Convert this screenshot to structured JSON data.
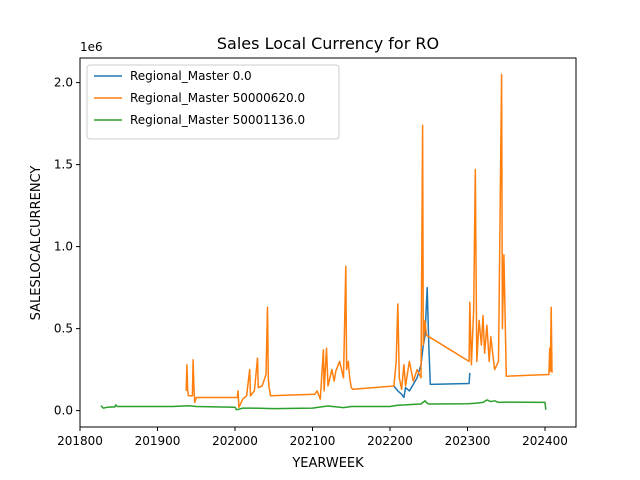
{
  "chart_data": {
    "type": "line",
    "title": "Sales Local Currency for RO",
    "xlabel": "YEARWEEK",
    "ylabel": "SALESLOCALCURRENCY",
    "y_offset_label": "1e6",
    "xlim": [
      201800,
      202440
    ],
    "ylim": [
      -0.1,
      2.15
    ],
    "y_scale_note": "y values in millions (1e6)",
    "grid": false,
    "legend_position": "upper-left",
    "x_ticks": [
      201800,
      201900,
      202000,
      202100,
      202200,
      202300,
      202400
    ],
    "x_tick_labels": [
      "201800",
      "201900",
      "202000",
      "202100",
      "202200",
      "202300",
      "202400"
    ],
    "y_ticks": [
      0.0,
      0.5,
      1.0,
      1.5,
      2.0
    ],
    "y_tick_labels": [
      "0.0",
      "0.5",
      "1.0",
      "1.5",
      "2.0"
    ],
    "series": [
      {
        "name": "Regional_Master 0.0",
        "color": "#1f77b4",
        "points": [
          [
            202205,
            0.15
          ],
          [
            202210,
            0.12
          ],
          [
            202215,
            0.1
          ],
          [
            202218,
            0.08
          ],
          [
            202220,
            0.14
          ],
          [
            202225,
            0.12
          ],
          [
            202230,
            0.16
          ],
          [
            202235,
            0.2
          ],
          [
            202240,
            0.28
          ],
          [
            202243,
            0.4
          ],
          [
            202245,
            0.45
          ],
          [
            202248,
            0.75
          ],
          [
            202250,
            0.4
          ],
          [
            202252,
            0.16
          ],
          [
            202302,
            0.165
          ],
          [
            202303,
            0.23
          ]
        ]
      },
      {
        "name": "Regional_Master 50000620.0",
        "color": "#ff7f0e",
        "points": [
          [
            201937,
            0.12
          ],
          [
            201938,
            0.28
          ],
          [
            201939,
            0.12
          ],
          [
            201940,
            0.09
          ],
          [
            201945,
            0.09
          ],
          [
            201946,
            0.31
          ],
          [
            201947,
            0.15
          ],
          [
            201948,
            0.05
          ],
          [
            201950,
            0.08
          ],
          [
            202003,
            0.08
          ],
          [
            202004,
            0.12
          ],
          [
            202005,
            0.02
          ],
          [
            202010,
            0.07
          ],
          [
            202015,
            0.09
          ],
          [
            202019,
            0.25
          ],
          [
            202020,
            0.09
          ],
          [
            202025,
            0.12
          ],
          [
            202029,
            0.32
          ],
          [
            202030,
            0.14
          ],
          [
            202035,
            0.15
          ],
          [
            202040,
            0.22
          ],
          [
            202042,
            0.63
          ],
          [
            202043,
            0.2
          ],
          [
            202044,
            0.14
          ],
          [
            202046,
            0.09
          ],
          [
            202103,
            0.1
          ],
          [
            202106,
            0.12
          ],
          [
            202110,
            0.07
          ],
          [
            202114,
            0.37
          ],
          [
            202115,
            0.12
          ],
          [
            202118,
            0.38
          ],
          [
            202120,
            0.15
          ],
          [
            202125,
            0.25
          ],
          [
            202128,
            0.18
          ],
          [
            202130,
            0.24
          ],
          [
            202135,
            0.3
          ],
          [
            202140,
            0.2
          ],
          [
            202143,
            0.88
          ],
          [
            202144,
            0.25
          ],
          [
            202146,
            0.3
          ],
          [
            202148,
            0.2
          ],
          [
            202150,
            0.14
          ],
          [
            202152,
            0.13
          ],
          [
            202205,
            0.15
          ],
          [
            202208,
            0.3
          ],
          [
            202210,
            0.65
          ],
          [
            202212,
            0.2
          ],
          [
            202215,
            0.13
          ],
          [
            202218,
            0.28
          ],
          [
            202220,
            0.15
          ],
          [
            202225,
            0.3
          ],
          [
            202230,
            0.18
          ],
          [
            202235,
            0.25
          ],
          [
            202240,
            0.2
          ],
          [
            202242,
            1.74
          ],
          [
            202243,
            0.4
          ],
          [
            202245,
            0.55
          ],
          [
            202247,
            0.46
          ],
          [
            202302,
            0.3
          ],
          [
            202303,
            0.66
          ],
          [
            202305,
            0.28
          ],
          [
            202308,
            0.62
          ],
          [
            202310,
            1.47
          ],
          [
            202312,
            0.3
          ],
          [
            202315,
            0.55
          ],
          [
            202318,
            0.4
          ],
          [
            202320,
            0.58
          ],
          [
            202322,
            0.35
          ],
          [
            202325,
            0.52
          ],
          [
            202328,
            0.3
          ],
          [
            202330,
            0.45
          ],
          [
            202335,
            0.25
          ],
          [
            202340,
            0.3
          ],
          [
            202344,
            2.05
          ],
          [
            202345,
            0.5
          ],
          [
            202347,
            0.95
          ],
          [
            202350,
            0.21
          ],
          [
            202405,
            0.22
          ],
          [
            202406,
            0.38
          ],
          [
            202407,
            0.24
          ],
          [
            202408,
            0.63
          ],
          [
            202409,
            0.23
          ]
        ]
      },
      {
        "name": "Regional_Master 50001136.0",
        "color": "#2ca02c",
        "points": [
          [
            201827,
            0.03
          ],
          [
            201830,
            0.015
          ],
          [
            201835,
            0.02
          ],
          [
            201840,
            0.022
          ],
          [
            201845,
            0.022
          ],
          [
            201846,
            0.035
          ],
          [
            201848,
            0.025
          ],
          [
            201900,
            0.025
          ],
          [
            201920,
            0.025
          ],
          [
            201940,
            0.03
          ],
          [
            201950,
            0.025
          ],
          [
            202000,
            0.02
          ],
          [
            202002,
            0.005
          ],
          [
            202010,
            0.015
          ],
          [
            202020,
            0.015
          ],
          [
            202050,
            0.012
          ],
          [
            202100,
            0.015
          ],
          [
            202110,
            0.022
          ],
          [
            202120,
            0.028
          ],
          [
            202140,
            0.018
          ],
          [
            202150,
            0.025
          ],
          [
            202200,
            0.025
          ],
          [
            202210,
            0.033
          ],
          [
            202220,
            0.035
          ],
          [
            202230,
            0.038
          ],
          [
            202240,
            0.04
          ],
          [
            202245,
            0.06
          ],
          [
            202248,
            0.045
          ],
          [
            202250,
            0.04
          ],
          [
            202300,
            0.042
          ],
          [
            202310,
            0.045
          ],
          [
            202320,
            0.05
          ],
          [
            202325,
            0.065
          ],
          [
            202330,
            0.055
          ],
          [
            202335,
            0.06
          ],
          [
            202340,
            0.05
          ],
          [
            202350,
            0.052
          ],
          [
            202400,
            0.05
          ],
          [
            202401,
            0.005
          ]
        ]
      }
    ]
  }
}
